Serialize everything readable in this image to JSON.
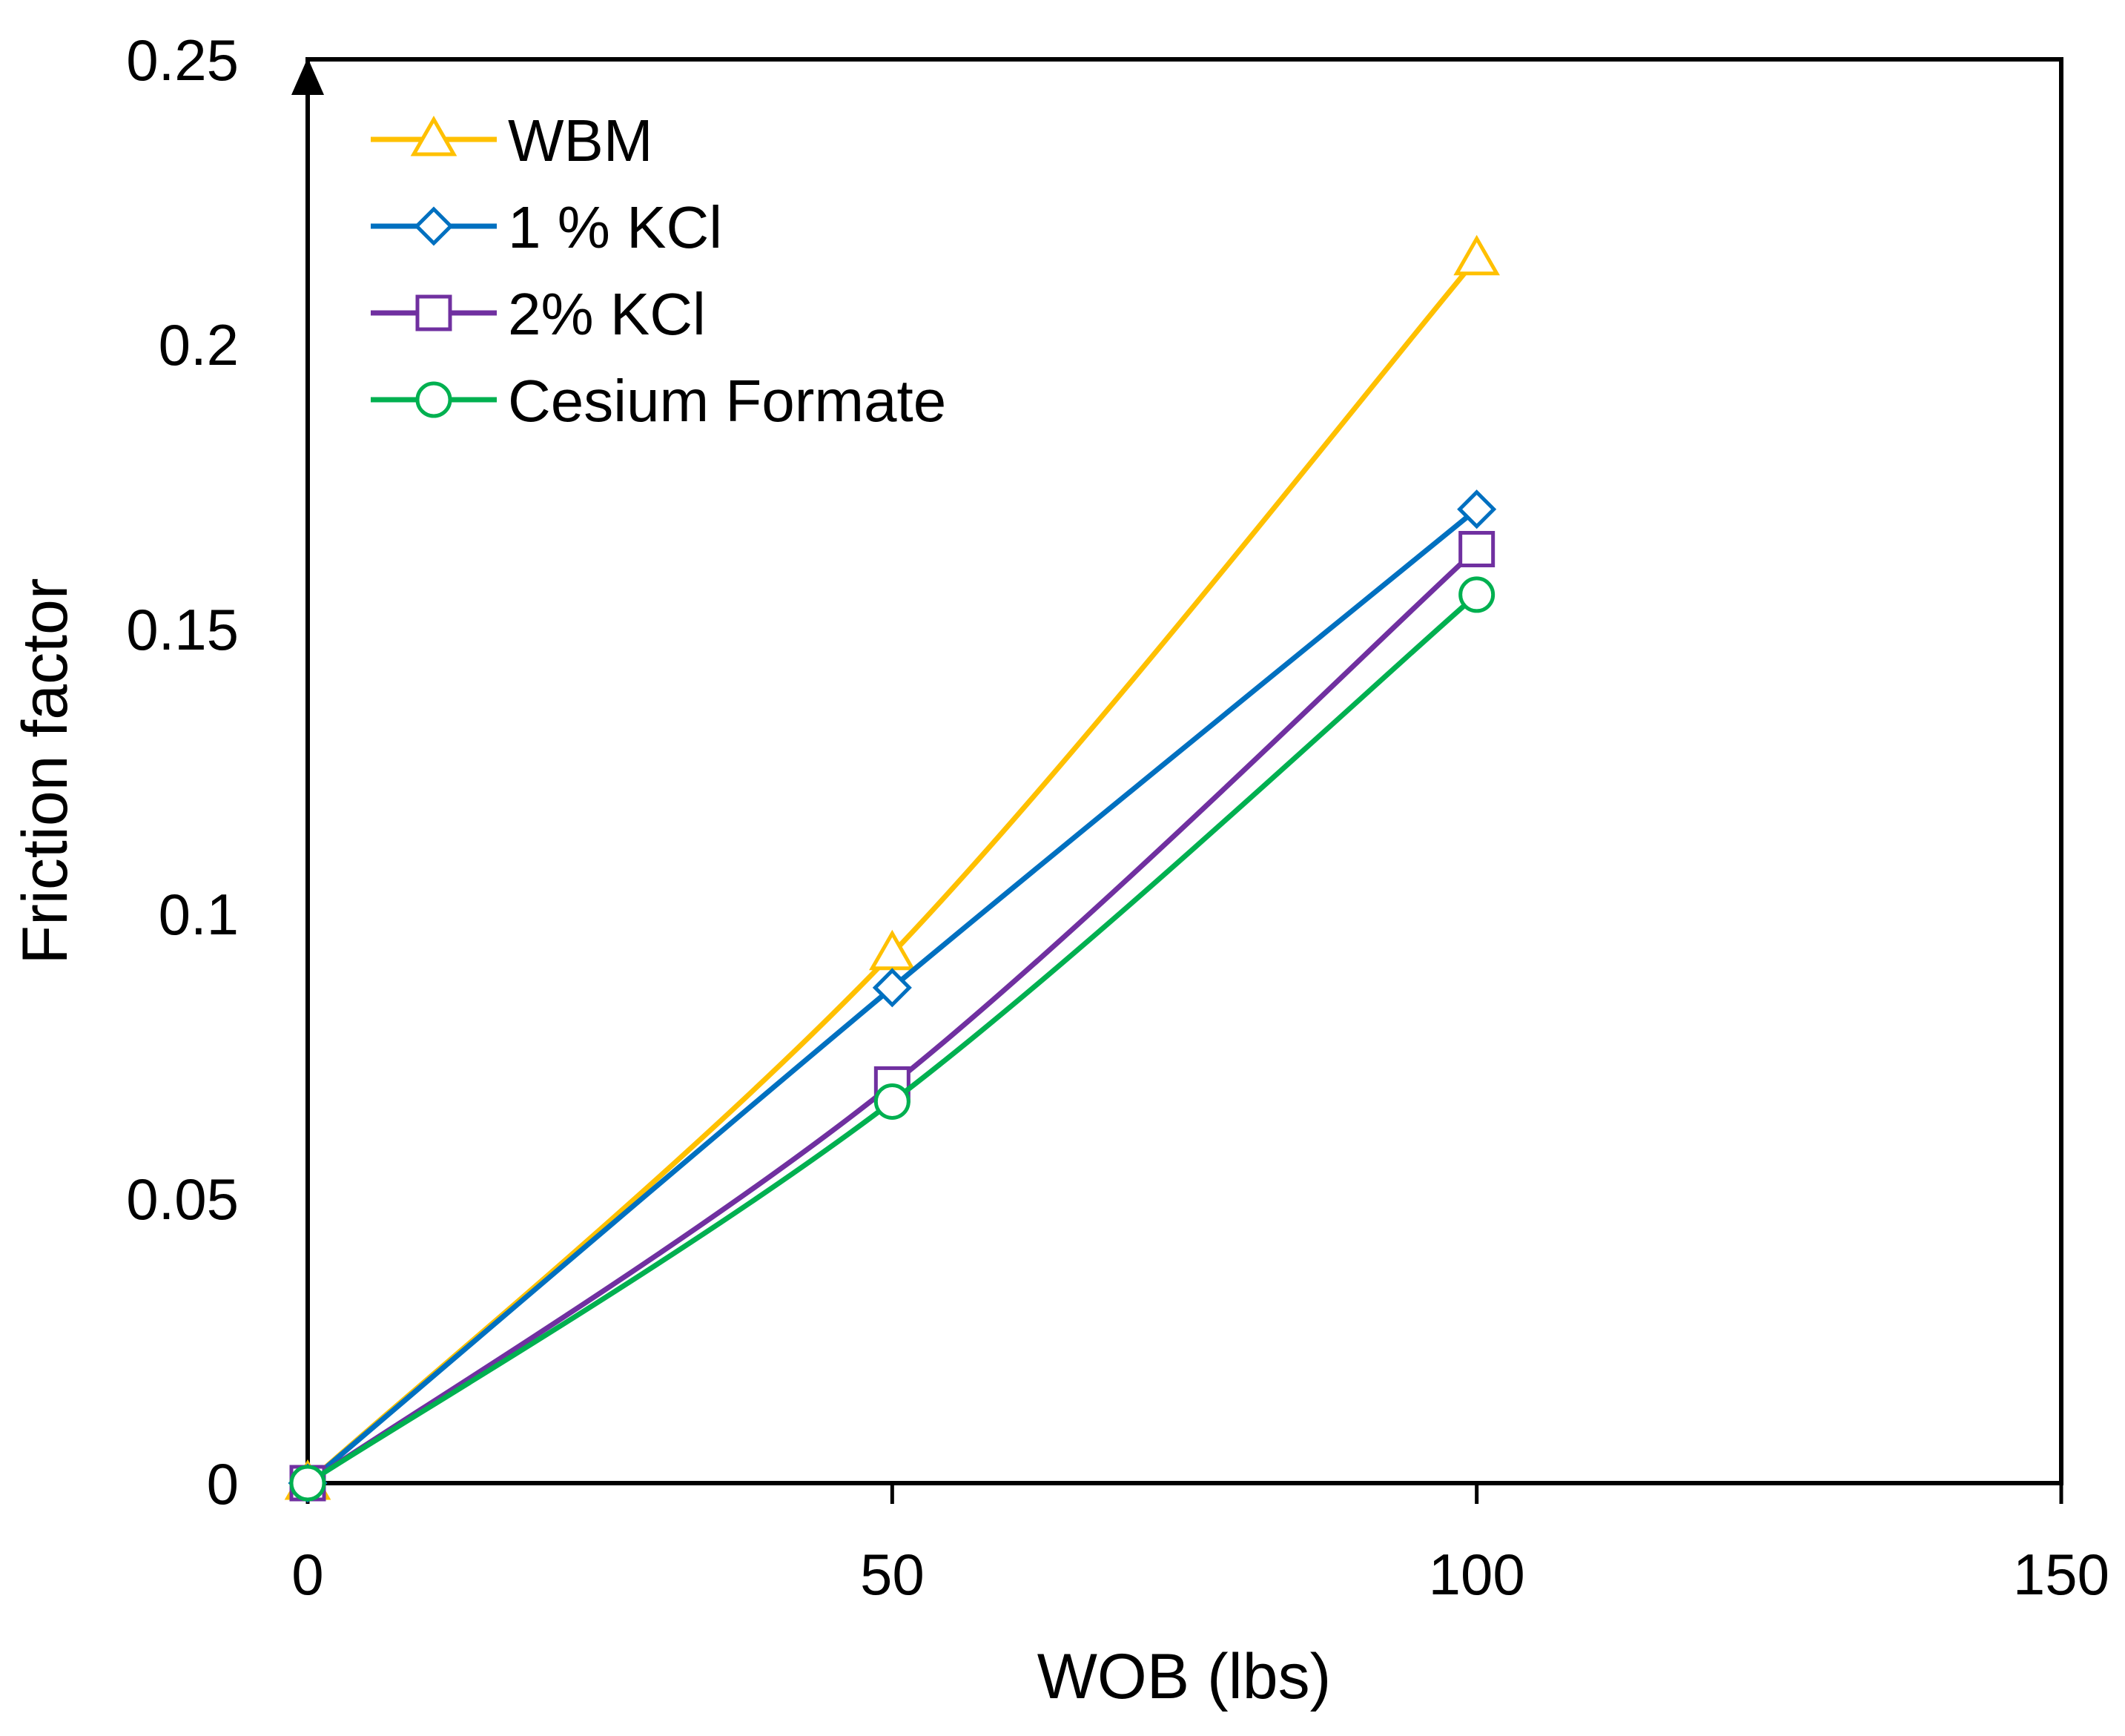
{
  "chart_data": {
    "type": "line",
    "title": "",
    "xlabel": "WOB (lbs)",
    "ylabel": "Friction factor",
    "xlim": [
      0,
      150
    ],
    "ylim": [
      0,
      0.25
    ],
    "x_ticks": [
      {
        "value": 0,
        "label": "0"
      },
      {
        "value": 50,
        "label": "50"
      },
      {
        "value": 100,
        "label": "100"
      },
      {
        "value": 150,
        "label": "150"
      }
    ],
    "y_ticks": [
      {
        "value": 0,
        "label": "0"
      },
      {
        "value": 0.05,
        "label": "0.05"
      },
      {
        "value": 0.1,
        "label": "0.1"
      },
      {
        "value": 0.15,
        "label": "0.15"
      },
      {
        "value": 0.2,
        "label": "0.2"
      },
      {
        "value": 0.25,
        "label": "0.25"
      }
    ],
    "grid": false,
    "legend_position": "top-left",
    "x": [
      0,
      50,
      100
    ],
    "series": [
      {
        "name": "WBM",
        "values": [
          0,
          0.093,
          0.215
        ],
        "color": "#FFC000",
        "marker": "triangle"
      },
      {
        "name": "1 % KCl",
        "values": [
          0,
          0.087,
          0.171
        ],
        "color": "#0070C0",
        "marker": "diamond"
      },
      {
        "name": "2% KCl",
        "values": [
          0,
          0.07,
          0.164
        ],
        "color": "#7030A0",
        "marker": "square"
      },
      {
        "name": "Cesium Formate",
        "values": [
          0,
          0.067,
          0.156
        ],
        "color": "#00B050",
        "marker": "circle"
      }
    ]
  }
}
